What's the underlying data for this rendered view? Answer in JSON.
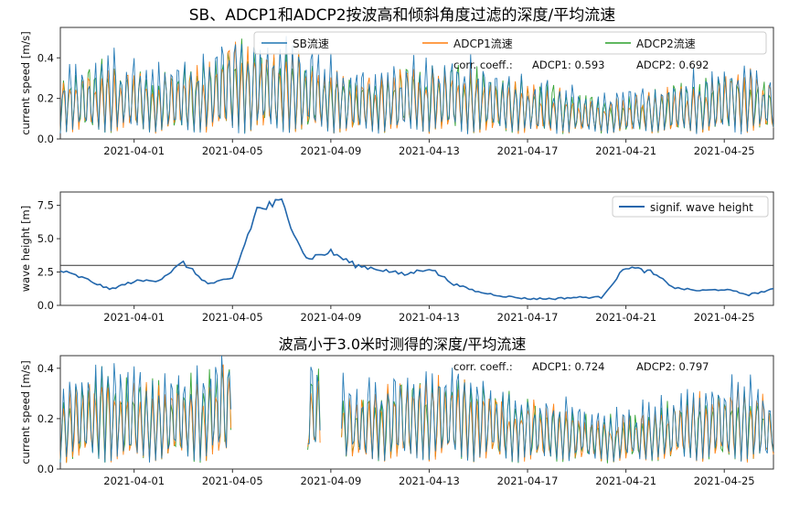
{
  "chart_data": [
    {
      "type": "line",
      "title": "SB、ADCP1和ADCP2按波高和倾斜角度过滤的深度/平均流速",
      "ylabel": "current speed [m/s]",
      "xlabel": "",
      "xlim": [
        "2021-03-29",
        "2021-04-27"
      ],
      "ylim": [
        0,
        0.55
      ],
      "yticks": [
        "0.0",
        "0.2",
        "0.4"
      ],
      "xticks": [
        "2021-04-01",
        "2021-04-05",
        "2021-04-09",
        "2021-04-13",
        "2021-04-17",
        "2021-04-21",
        "2021-04-25"
      ],
      "legend": "top-right",
      "annotation": {
        "label": "corr. coeff.:",
        "adcp1": "ADCP1: 0.593",
        "adcp2": "ADCP2: 0.692"
      },
      "series": [
        {
          "name": "SB流速",
          "color": "#1f77b4"
        },
        {
          "name": "ADCP1流速",
          "color": "#ff7f0e"
        },
        {
          "name": "ADCP2流速",
          "color": "#2ca02c"
        }
      ],
      "note_series_values": "tidal signals with ~2 peaks/day; envelope per day below",
      "daily_peak": {
        "x": [
          "2021-03-29",
          "2021-03-31",
          "2021-04-02",
          "2021-04-04",
          "2021-04-05",
          "2021-04-06",
          "2021-04-08",
          "2021-04-10",
          "2021-04-12",
          "2021-04-14",
          "2021-04-16",
          "2021-04-18",
          "2021-04-20",
          "2021-04-22",
          "2021-04-24",
          "2021-04-26",
          "2021-04-27"
        ],
        "sb": [
          0.3,
          0.4,
          0.33,
          0.38,
          0.52,
          0.45,
          0.42,
          0.3,
          0.36,
          0.38,
          0.3,
          0.27,
          0.2,
          0.24,
          0.3,
          0.35,
          0.27
        ]
      }
    },
    {
      "type": "line",
      "title": "",
      "ylabel": "wave height [m]",
      "xlabel": "",
      "xlim": [
        "2021-03-29",
        "2021-04-27"
      ],
      "ylim": [
        0,
        8.5
      ],
      "yticks": [
        "0.0",
        "2.5",
        "5.0",
        "7.5"
      ],
      "xticks": [
        "2021-04-01",
        "2021-04-05",
        "2021-04-09",
        "2021-04-13",
        "2021-04-17",
        "2021-04-21",
        "2021-04-25"
      ],
      "legend": "top-right",
      "threshold": 3.0,
      "series": [
        {
          "name": "signif. wave height",
          "color": "#2166ac",
          "x": [
            "2021-03-29",
            "2021-03-30",
            "2021-03-31",
            "2021-04-01",
            "2021-04-02",
            "2021-04-03",
            "2021-04-04",
            "2021-04-05",
            "2021-04-06",
            "2021-04-07",
            "2021-04-08",
            "2021-04-09",
            "2021-04-10",
            "2021-04-11",
            "2021-04-12",
            "2021-04-13",
            "2021-04-14",
            "2021-04-15",
            "2021-04-16",
            "2021-04-17",
            "2021-04-18",
            "2021-04-19",
            "2021-04-20",
            "2021-04-21",
            "2021-04-22",
            "2021-04-23",
            "2021-04-24",
            "2021-04-25",
            "2021-04-26",
            "2021-04-27"
          ],
          "y": [
            2.6,
            2.0,
            1.2,
            1.8,
            1.9,
            3.2,
            1.6,
            2.0,
            7.2,
            7.7,
            3.5,
            4.0,
            3.0,
            2.7,
            2.3,
            2.8,
            1.6,
            1.0,
            0.7,
            0.5,
            0.5,
            0.6,
            0.6,
            2.9,
            2.5,
            1.3,
            1.1,
            1.2,
            0.8,
            1.2
          ]
        }
      ]
    },
    {
      "type": "line",
      "title": "波高小于3.0米时测得的深度/平均流速",
      "ylabel": "current speed [m/s]",
      "xlabel": "",
      "xlim": [
        "2021-03-29",
        "2021-04-27"
      ],
      "ylim": [
        0,
        0.45
      ],
      "yticks": [
        "0.0",
        "0.2",
        "0.4"
      ],
      "xticks": [
        "2021-04-01",
        "2021-04-05",
        "2021-04-09",
        "2021-04-13",
        "2021-04-17",
        "2021-04-21",
        "2021-04-25"
      ],
      "annotation": {
        "label": "corr. coeff.:",
        "adcp1": "ADCP1: 0.724",
        "adcp2": "ADCP2: 0.797"
      },
      "gaps": [
        [
          "2021-04-05",
          "2021-04-08"
        ],
        [
          "2021-04-08.6",
          "2021-04-09.4"
        ]
      ],
      "series": [
        {
          "name": "SB流速",
          "color": "#1f77b4"
        },
        {
          "name": "ADCP1流速",
          "color": "#ff7f0e"
        },
        {
          "name": "ADCP2流速",
          "color": "#2ca02c"
        }
      ]
    }
  ]
}
